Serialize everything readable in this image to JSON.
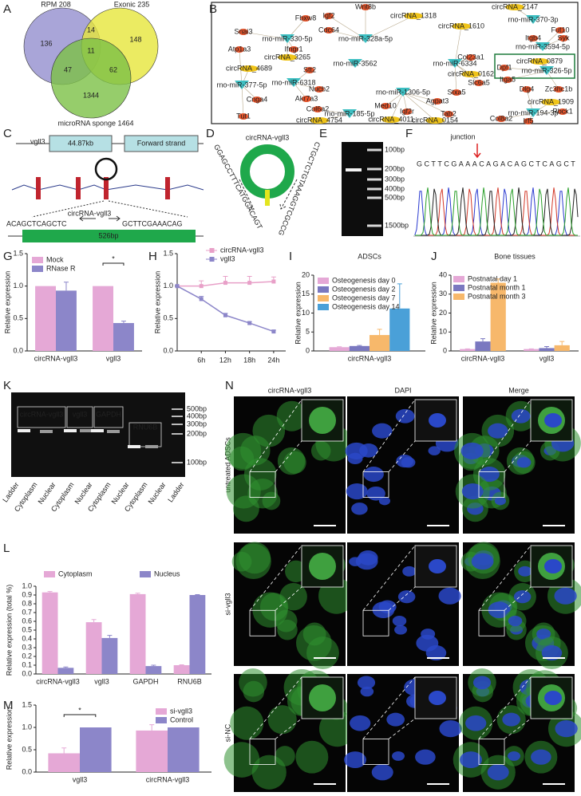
{
  "panel_labels": [
    "A",
    "B",
    "C",
    "D",
    "E",
    "F",
    "G",
    "H",
    "I",
    "J",
    "K",
    "L",
    "M",
    "N"
  ],
  "venn": {
    "sets": [
      "RPM 208",
      "Exonic 235",
      "microRNA sponge 1464"
    ],
    "regions": [
      136,
      14,
      148,
      11,
      47,
      62,
      1344
    ]
  },
  "network": {
    "nodes": [
      "Snai3",
      "Fbxw8",
      "Igf2",
      "Wnt8b",
      "circRNA_1318",
      "circRNA_2147",
      "rno-miR-370-3p",
      "Fut10",
      "Cdc64",
      "circRNA_1610",
      "Col23a1",
      "Itgb4",
      "Syk",
      "rno-miR-330-5p",
      "rno-miR-328a-5p",
      "rno-miR-3594-5p",
      "Atp1a3",
      "Ifngr1",
      "circRNA_3265",
      "rno-miR-3562",
      "rno-miR-6334",
      "circRNA_0162",
      "Dpf1",
      "circRNA_0879",
      "circRNA_4689",
      "Stt2",
      "rno-miR-326-5p",
      "Itga5",
      "Slc6a5",
      "rno-miR-377-5p",
      "rno-miR-6318",
      "Dlg4",
      "Zc3hc1b",
      "Cnga4",
      "Nucb2",
      "rno-miR-1306-5p",
      "Stxa5",
      "Agpat3",
      "circRNA_1909",
      "Tut1",
      "Med10",
      "Igf2r",
      "Tab2",
      "rno-miR-194-3p",
      "Akr7a3",
      "rno-miR-185-5p",
      "Rbck1",
      "Col6a2",
      "circRNA_4011",
      "Col8a2",
      "Irf5",
      "circRNA_4754",
      "circRNA_0154"
    ]
  },
  "gene_structure": {
    "gene": "vgll3",
    "length": "44.87kb",
    "strand": "Forward strand",
    "circ": "circRNA-vgll3",
    "left_seq": "ACAGCTCAGCTC",
    "right_seq": "GCTTCGAAACAG",
    "product": "526bp"
  },
  "circ_diagram": {
    "name": "circRNA-vgll3",
    "left_seq": "GGAGCCTTTCATGGACAGT",
    "right_seq": "CTGCTCTGTAAAGGTCGCCG"
  },
  "gel_e": {
    "ladder": [
      "100bp",
      "200bp",
      "300bp",
      "400bp",
      "500bp",
      "1500bp"
    ]
  },
  "sanger": {
    "label": "junction",
    "sequence": "GCTTCGAAACAGACAGCTCAGCT"
  },
  "chart_data": [
    {
      "type": "bar",
      "categories": [
        "circRNA-vgll3",
        "vgll3"
      ],
      "ylabel": "Relative expression",
      "ylim": [
        0,
        1.5
      ],
      "yticks": [
        {
          "value": 0,
          "label": "0.0"
        },
        0.5,
        {
          "value": 1,
          "label": "1.0"
        },
        1.5
      ],
      "legend": "top-left",
      "annotation": "*",
      "series": [
        {
          "name": "Mock",
          "color": "#e5a8d6",
          "values": [
            1,
            1
          ],
          "errors": [
            null,
            null
          ]
        },
        {
          "name": "RNase R",
          "color": "#8c86c9",
          "values": [
            0.93,
            0.43
          ],
          "errors": [
            0.13,
            0.03
          ]
        }
      ]
    },
    {
      "type": "line",
      "x": [
        0,
        6,
        12,
        18,
        24
      ],
      "xlim": [
        0,
        27
      ],
      "xticks": [
        {
          "value": 6,
          "label": "6h"
        },
        {
          "value": 12,
          "label": "12h"
        },
        {
          "value": 18,
          "label": "18h"
        },
        {
          "value": 24,
          "label": "24h"
        }
      ],
      "ylabel": "Relative expression",
      "ylim": [
        0,
        1.5
      ],
      "yticks": [
        {
          "value": 0,
          "label": "0.0"
        },
        0.5,
        {
          "value": 1,
          "label": "1.0"
        },
        1.5
      ],
      "legend": "top-right",
      "series": [
        {
          "name": "circRNA-vgll3",
          "color": "#e8a0c8",
          "values": [
            1,
            1,
            1.05,
            1.05,
            1.07
          ],
          "errors": [
            null,
            0.08,
            0.1,
            0.1,
            0.07
          ]
        },
        {
          "name": "vgll3",
          "color": "#8c86c9",
          "values": [
            1,
            0.8,
            0.55,
            0.43,
            0.3
          ],
          "errors": [
            null,
            0.04,
            0.03,
            0.02,
            0.02
          ]
        }
      ]
    },
    {
      "type": "bar",
      "title": "ADSCs",
      "categories": [
        "circRNA-vgll3"
      ],
      "ylabel": "Relative expression",
      "ylim": [
        0,
        20
      ],
      "yticks": [
        0,
        5,
        10,
        15,
        20
      ],
      "legend": "top-left",
      "series": [
        {
          "name": "Osteogenesis day 0",
          "color": "#e5a8d6",
          "values": [
            1
          ],
          "errors": [
            0.1
          ]
        },
        {
          "name": "Osteogenesis day 2",
          "color": "#7a78c0",
          "values": [
            1.3
          ],
          "errors": [
            0.15
          ]
        },
        {
          "name": "Osteogenesis day 7",
          "color": "#f7b86b",
          "values": [
            4.2
          ],
          "errors": [
            1.5
          ]
        },
        {
          "name": "Osteogenesis day 14",
          "color": "#4aa0d8",
          "values": [
            11.2
          ],
          "errors": [
            6.5
          ]
        }
      ]
    },
    {
      "type": "bar",
      "title": "Bone tissues",
      "categories": [
        "circRNA-vgll3",
        "vgll3"
      ],
      "ylabel": "Relative expression",
      "ylim": [
        0,
        40
      ],
      "yticks": [
        0,
        10,
        20,
        30,
        40
      ],
      "legend": "top-left",
      "series": [
        {
          "name": "Postnatal day 1",
          "color": "#e5a8d6",
          "values": [
            1,
            1
          ],
          "errors": [
            0.1,
            0.1
          ]
        },
        {
          "name": "Postnatal month 1",
          "color": "#7a78c0",
          "values": [
            5,
            1.5
          ],
          "errors": [
            1.5,
            0.8
          ]
        },
        {
          "name": "Postnatal month 3",
          "color": "#f7b86b",
          "values": [
            36,
            3
          ],
          "errors": [
            2,
            2
          ]
        }
      ]
    },
    {
      "type": "bar",
      "categories": [
        "circRNA-vgll3",
        "vgll3",
        "GAPDH",
        "RNU6B"
      ],
      "ylabel": "Relative expression (total %)",
      "ylim": [
        0,
        1
      ],
      "yticks": [
        {
          "value": 0,
          "label": "0.0"
        },
        0.1,
        0.2,
        0.3,
        0.4,
        0.5,
        0.6,
        0.7,
        0.8,
        0.9,
        {
          "value": 1,
          "label": "1.0"
        }
      ],
      "legend": "top",
      "series": [
        {
          "name": "Cytoplasm",
          "color": "#e5a8d6",
          "values": [
            0.93,
            0.59,
            0.91,
            0.1
          ],
          "errors": [
            0.01,
            0.03,
            0.01,
            0.005
          ]
        },
        {
          "name": "Nucleus",
          "color": "#8c86c9",
          "values": [
            0.07,
            0.41,
            0.09,
            0.9
          ],
          "errors": [
            0.01,
            0.03,
            0.01,
            0.005
          ]
        }
      ]
    },
    {
      "type": "bar",
      "categories": [
        "vgll3",
        "circRNA-vgll3"
      ],
      "ylabel": "Relative expression",
      "ylim": [
        0,
        1.5
      ],
      "yticks": [
        {
          "value": 0,
          "label": "0.0"
        },
        0.5,
        {
          "value": 1,
          "label": "1.0"
        },
        1.5
      ],
      "legend": "right",
      "annotation": "*",
      "series": [
        {
          "name": "si-vgll3",
          "color": "#e5a8d6",
          "values": [
            0.42,
            0.93
          ],
          "errors": [
            0.12,
            0.13
          ]
        },
        {
          "name": "Control",
          "color": "#8c86c9",
          "values": [
            1,
            1
          ],
          "errors": [
            null,
            null
          ]
        }
      ]
    }
  ],
  "gel_k": {
    "targets": [
      "circRNA-vgll3",
      "vgll3",
      "GAPDH",
      "RNU6B"
    ],
    "lanes": [
      "Ladder",
      "Cytoplasm",
      "Nuclear",
      "Cytoplasm",
      "Nuclear",
      "Cytoplasm",
      "Nuclear",
      "Cytoplasm",
      "Nuclear",
      "Ladder"
    ],
    "ladder": [
      "500bp",
      "400bp",
      "300bp",
      "200bp",
      "100bp"
    ]
  },
  "imaging": {
    "columns": [
      "circRNA-vgll3",
      "DAPI",
      "Merge"
    ],
    "rows": [
      "untreated ADSCs",
      "si-vgll3",
      "si-NC"
    ]
  }
}
